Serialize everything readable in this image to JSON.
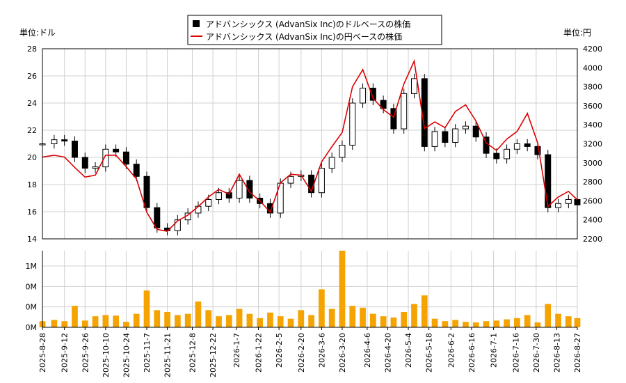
{
  "chart_data": [
    {
      "type": "candlestick+line",
      "legend": {
        "placement": "top-center",
        "entries": [
          {
            "label": "アドバンシックス (AdvanSix Inc)のドルベースの株価",
            "color": "#000000",
            "marker": "square"
          },
          {
            "label": "アドバンシックス (AdvanSix Inc)の円ベースの株価",
            "color": "#dd0000",
            "marker": "line"
          }
        ]
      },
      "left_unit": "単位:ドル",
      "right_unit": "単位:円",
      "y_left": {
        "min": 14,
        "max": 28,
        "ticks": [
          "14",
          "16",
          "18",
          "20",
          "22",
          "24",
          "26",
          "28"
        ]
      },
      "y_right": {
        "min": 2200,
        "max": 4200,
        "ticks": [
          "2200",
          "2400",
          "2600",
          "2800",
          "3000",
          "3200",
          "3400",
          "3600",
          "3800",
          "4000",
          "4200"
        ]
      },
      "grid": true,
      "usd_price_weekly": [
        {
          "date": "2025-08-28",
          "close": 21.0
        },
        {
          "date": "2025-09-05",
          "close": 21.3
        },
        {
          "date": "2025-09-12",
          "close": 21.2
        },
        {
          "date": "2025-09-19",
          "close": 20.0
        },
        {
          "date": "2025-09-26",
          "close": 19.2
        },
        {
          "date": "2025-10-03",
          "close": 19.3
        },
        {
          "date": "2025-10-10",
          "close": 20.6
        },
        {
          "date": "2025-10-17",
          "close": 20.4
        },
        {
          "date": "2025-10-24",
          "close": 19.5
        },
        {
          "date": "2025-10-31",
          "close": 18.6
        },
        {
          "date": "2025-11-07",
          "close": 16.3
        },
        {
          "date": "2025-11-14",
          "close": 14.8
        },
        {
          "date": "2025-11-21",
          "close": 14.6
        },
        {
          "date": "2025-11-28",
          "close": 15.4
        },
        {
          "date": "2025-12-05",
          "close": 15.9
        },
        {
          "date": "2025-12-12",
          "close": 16.4
        },
        {
          "date": "2025-12-19",
          "close": 16.9
        },
        {
          "date": "2025-12-26",
          "close": 17.4
        },
        {
          "date": "2026-01-02",
          "close": 17.0
        },
        {
          "date": "2026-01-09",
          "close": 18.3
        },
        {
          "date": "2026-01-16",
          "close": 17.0
        },
        {
          "date": "2026-01-23",
          "close": 16.6
        },
        {
          "date": "2026-01-30",
          "close": 15.9
        },
        {
          "date": "2026-02-06",
          "close": 18.1
        },
        {
          "date": "2026-02-13",
          "close": 18.6
        },
        {
          "date": "2026-02-20",
          "close": 18.7
        },
        {
          "date": "2026-02-27",
          "close": 17.4
        },
        {
          "date": "2026-03-06",
          "close": 19.2
        },
        {
          "date": "2026-03-13",
          "close": 20.0
        },
        {
          "date": "2026-03-20",
          "close": 20.9
        },
        {
          "date": "2026-03-27",
          "close": 24.0
        },
        {
          "date": "2026-04-03",
          "close": 25.1
        },
        {
          "date": "2026-04-10",
          "close": 24.2
        },
        {
          "date": "2026-04-17",
          "close": 23.6
        },
        {
          "date": "2026-04-24",
          "close": 22.1
        },
        {
          "date": "2026-05-01",
          "close": 24.7
        },
        {
          "date": "2026-05-08",
          "close": 25.8
        },
        {
          "date": "2026-05-15",
          "close": 20.8
        },
        {
          "date": "2026-05-22",
          "close": 21.9
        },
        {
          "date": "2026-05-29",
          "close": 21.1
        },
        {
          "date": "2026-06-05",
          "close": 22.1
        },
        {
          "date": "2026-06-12",
          "close": 22.3
        },
        {
          "date": "2026-06-19",
          "close": 21.5
        },
        {
          "date": "2026-06-26",
          "close": 20.3
        },
        {
          "date": "2026-07-03",
          "close": 19.9
        },
        {
          "date": "2026-07-10",
          "close": 20.6
        },
        {
          "date": "2026-07-17",
          "close": 21.0
        },
        {
          "date": "2026-07-24",
          "close": 20.8
        },
        {
          "date": "2026-07-31",
          "close": 20.2
        },
        {
          "date": "2026-08-07",
          "close": 16.3
        },
        {
          "date": "2026-08-14",
          "close": 16.6
        },
        {
          "date": "2026-08-21",
          "close": 16.9
        },
        {
          "date": "2026-08-27",
          "close": 16.5
        }
      ],
      "jpy_price_weekly": [
        {
          "date": "2025-08-28",
          "value": 3060
        },
        {
          "date": "2025-09-05",
          "value": 3080
        },
        {
          "date": "2025-09-12",
          "value": 3060
        },
        {
          "date": "2025-09-19",
          "value": 2950
        },
        {
          "date": "2025-09-26",
          "value": 2850
        },
        {
          "date": "2025-10-03",
          "value": 2870
        },
        {
          "date": "2025-10-10",
          "value": 3080
        },
        {
          "date": "2025-10-17",
          "value": 3080
        },
        {
          "date": "2025-10-24",
          "value": 2960
        },
        {
          "date": "2025-10-31",
          "value": 2830
        },
        {
          "date": "2025-11-07",
          "value": 2480
        },
        {
          "date": "2025-11-14",
          "value": 2300
        },
        {
          "date": "2025-11-21",
          "value": 2280
        },
        {
          "date": "2025-11-28",
          "value": 2390
        },
        {
          "date": "2025-12-05",
          "value": 2450
        },
        {
          "date": "2025-12-12",
          "value": 2540
        },
        {
          "date": "2025-12-19",
          "value": 2640
        },
        {
          "date": "2025-12-26",
          "value": 2720
        },
        {
          "date": "2026-01-02",
          "value": 2670
        },
        {
          "date": "2026-01-09",
          "value": 2880
        },
        {
          "date": "2026-01-16",
          "value": 2690
        },
        {
          "date": "2026-01-23",
          "value": 2600
        },
        {
          "date": "2026-01-30",
          "value": 2480
        },
        {
          "date": "2026-02-06",
          "value": 2790
        },
        {
          "date": "2026-02-13",
          "value": 2880
        },
        {
          "date": "2026-02-20",
          "value": 2870
        },
        {
          "date": "2026-02-27",
          "value": 2700
        },
        {
          "date": "2026-03-06",
          "value": 3010
        },
        {
          "date": "2026-03-13",
          "value": 3170
        },
        {
          "date": "2026-03-20",
          "value": 3320
        },
        {
          "date": "2026-03-27",
          "value": 3800
        },
        {
          "date": "2026-04-03",
          "value": 3980
        },
        {
          "date": "2026-04-10",
          "value": 3680
        },
        {
          "date": "2026-04-17",
          "value": 3560
        },
        {
          "date": "2026-04-24",
          "value": 3480
        },
        {
          "date": "2026-05-01",
          "value": 3830
        },
        {
          "date": "2026-05-08",
          "value": 4070
        },
        {
          "date": "2026-05-15",
          "value": 3360
        },
        {
          "date": "2026-05-22",
          "value": 3430
        },
        {
          "date": "2026-05-29",
          "value": 3370
        },
        {
          "date": "2026-06-05",
          "value": 3540
        },
        {
          "date": "2026-06-12",
          "value": 3610
        },
        {
          "date": "2026-06-19",
          "value": 3440
        },
        {
          "date": "2026-06-26",
          "value": 3210
        },
        {
          "date": "2026-07-03",
          "value": 3130
        },
        {
          "date": "2026-07-10",
          "value": 3250
        },
        {
          "date": "2026-07-17",
          "value": 3330
        },
        {
          "date": "2026-07-24",
          "value": 3520
        },
        {
          "date": "2026-07-31",
          "value": 3210
        },
        {
          "date": "2026-08-07",
          "value": 2540
        },
        {
          "date": "2026-08-14",
          "value": 2640
        },
        {
          "date": "2026-08-21",
          "value": 2700
        },
        {
          "date": "2026-08-27",
          "value": 2610
        }
      ],
      "volume_axis": {
        "ticks": [
          "0M",
          "0M",
          "0M",
          "1M"
        ],
        "tick_values": [
          0,
          0.3333,
          0.6667,
          1.0
        ],
        "max": 1.25
      },
      "volume_weekly_millions": [
        {
          "date": "2025-08-28",
          "value": 0.1
        },
        {
          "date": "2025-09-05",
          "value": 0.12
        },
        {
          "date": "2025-09-12",
          "value": 0.1
        },
        {
          "date": "2025-09-19",
          "value": 0.35
        },
        {
          "date": "2025-09-26",
          "value": 0.11
        },
        {
          "date": "2025-10-03",
          "value": 0.18
        },
        {
          "date": "2025-10-10",
          "value": 0.2
        },
        {
          "date": "2025-10-17",
          "value": 0.19
        },
        {
          "date": "2025-10-24",
          "value": 0.09
        },
        {
          "date": "2025-10-31",
          "value": 0.22
        },
        {
          "date": "2025-11-07",
          "value": 0.6
        },
        {
          "date": "2025-11-14",
          "value": 0.28
        },
        {
          "date": "2025-11-21",
          "value": 0.25
        },
        {
          "date": "2025-11-28",
          "value": 0.2
        },
        {
          "date": "2025-12-05",
          "value": 0.22
        },
        {
          "date": "2025-12-12",
          "value": 0.42
        },
        {
          "date": "2025-12-19",
          "value": 0.28
        },
        {
          "date": "2025-12-26",
          "value": 0.18
        },
        {
          "date": "2026-01-02",
          "value": 0.2
        },
        {
          "date": "2026-01-09",
          "value": 0.3
        },
        {
          "date": "2026-01-16",
          "value": 0.22
        },
        {
          "date": "2026-01-23",
          "value": 0.15
        },
        {
          "date": "2026-01-30",
          "value": 0.24
        },
        {
          "date": "2026-02-06",
          "value": 0.18
        },
        {
          "date": "2026-02-13",
          "value": 0.14
        },
        {
          "date": "2026-02-20",
          "value": 0.28
        },
        {
          "date": "2026-02-27",
          "value": 0.2
        },
        {
          "date": "2026-03-06",
          "value": 0.62
        },
        {
          "date": "2026-03-13",
          "value": 0.3
        },
        {
          "date": "2026-03-20",
          "value": 1.25
        },
        {
          "date": "2026-03-27",
          "value": 0.35
        },
        {
          "date": "2026-04-03",
          "value": 0.32
        },
        {
          "date": "2026-04-10",
          "value": 0.22
        },
        {
          "date": "2026-04-17",
          "value": 0.18
        },
        {
          "date": "2026-04-24",
          "value": 0.16
        },
        {
          "date": "2026-05-01",
          "value": 0.25
        },
        {
          "date": "2026-05-08",
          "value": 0.38
        },
        {
          "date": "2026-05-15",
          "value": 0.52
        },
        {
          "date": "2026-05-22",
          "value": 0.14
        },
        {
          "date": "2026-05-29",
          "value": 0.1
        },
        {
          "date": "2026-06-05",
          "value": 0.12
        },
        {
          "date": "2026-06-12",
          "value": 0.09
        },
        {
          "date": "2026-06-19",
          "value": 0.08
        },
        {
          "date": "2026-06-26",
          "value": 0.1
        },
        {
          "date": "2026-07-03",
          "value": 0.11
        },
        {
          "date": "2026-07-10",
          "value": 0.13
        },
        {
          "date": "2026-07-17",
          "value": 0.15
        },
        {
          "date": "2026-07-24",
          "value": 0.2
        },
        {
          "date": "2026-07-31",
          "value": 0.08
        },
        {
          "date": "2026-08-07",
          "value": 0.38
        },
        {
          "date": "2026-08-14",
          "value": 0.22
        },
        {
          "date": "2026-08-21",
          "value": 0.18
        },
        {
          "date": "2026-08-27",
          "value": 0.15
        }
      ],
      "volume_color": "#f5a300",
      "candle_color": "#000000",
      "jpy_line_color": "#dd0000",
      "x_axis": {
        "labels": [
          "2025-8-28",
          "2025-9-12",
          "2025-9-26",
          "2025-10-10",
          "2025-10-24",
          "2025-11-7",
          "2025-11-21",
          "2025-12-8",
          "2025-12-22",
          "2026-1-7",
          "2026-1-22",
          "2026-2-5",
          "2026-2-20",
          "2026-3-6",
          "2026-3-20",
          "2026-4-6",
          "2026-4-20",
          "2026-5-4",
          "2026-5-18",
          "2026-6-2",
          "2026-6-16",
          "2026-7-1",
          "2026-7-16",
          "2026-7-30",
          "2026-8-13",
          "2026-8-27"
        ],
        "start": "2025-08-28",
        "end": "2026-08-27"
      }
    }
  ]
}
